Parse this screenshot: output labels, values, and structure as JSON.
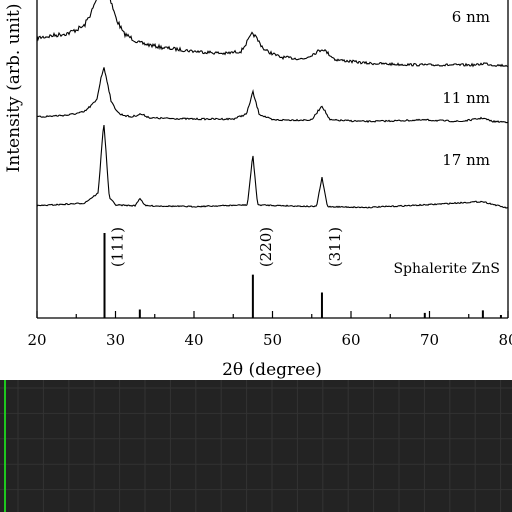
{
  "chart_data": {
    "type": "line",
    "title": "",
    "xlabel": "2θ (degree)",
    "ylabel": "Intensity (arb. unit)",
    "xlim": [
      20,
      80
    ],
    "xticks": [
      20,
      30,
      40,
      50,
      60,
      70,
      80
    ],
    "grid": false,
    "series": [
      {
        "name": "6 nm",
        "points": [
          [
            20,
            0.5
          ],
          [
            24,
            0.58
          ],
          [
            26,
            0.7
          ],
          [
            27,
            0.95
          ],
          [
            27.8,
            1.2
          ],
          [
            28.5,
            1.35
          ],
          [
            29.2,
            1.2
          ],
          [
            30,
            0.85
          ],
          [
            31,
            0.58
          ],
          [
            33,
            0.42
          ],
          [
            36,
            0.34
          ],
          [
            40,
            0.28
          ],
          [
            44,
            0.24
          ],
          [
            46,
            0.28
          ],
          [
            47.5,
            0.58
          ],
          [
            49,
            0.3
          ],
          [
            51,
            0.18
          ],
          [
            54,
            0.15
          ],
          [
            56.4,
            0.32
          ],
          [
            58,
            0.14
          ],
          [
            62,
            0.08
          ],
          [
            66,
            0.06
          ],
          [
            70,
            0.05
          ],
          [
            76,
            0.05
          ],
          [
            77,
            0.08
          ],
          [
            78,
            0.05
          ],
          [
            80,
            0.04
          ]
        ]
      },
      {
        "name": "11 nm",
        "points": [
          [
            20,
            0.12
          ],
          [
            24,
            0.16
          ],
          [
            26,
            0.22
          ],
          [
            27.6,
            0.45
          ],
          [
            28.2,
            0.95
          ],
          [
            28.5,
            1.1
          ],
          [
            28.8,
            0.95
          ],
          [
            29.5,
            0.4
          ],
          [
            30.5,
            0.18
          ],
          [
            32,
            0.12
          ],
          [
            33.2,
            0.18
          ],
          [
            34.5,
            0.1
          ],
          [
            40,
            0.08
          ],
          [
            45,
            0.08
          ],
          [
            46.7,
            0.18
          ],
          [
            47.5,
            0.62
          ],
          [
            48.3,
            0.18
          ],
          [
            50,
            0.06
          ],
          [
            55,
            0.06
          ],
          [
            56.3,
            0.35
          ],
          [
            57.3,
            0.06
          ],
          [
            62,
            0.03
          ],
          [
            69.5,
            0.06
          ],
          [
            74,
            0.03
          ],
          [
            76.8,
            0.1
          ],
          [
            78,
            0.03
          ],
          [
            80,
            0.02
          ]
        ]
      },
      {
        "name": "17 nm",
        "points": [
          [
            20,
            0.05
          ],
          [
            26,
            0.08
          ],
          [
            27.8,
            0.2
          ],
          [
            28.3,
            0.8
          ],
          [
            28.5,
            1.05
          ],
          [
            28.7,
            0.8
          ],
          [
            29.2,
            0.15
          ],
          [
            30,
            0.06
          ],
          [
            32.5,
            0.05
          ],
          [
            33.1,
            0.14
          ],
          [
            33.8,
            0.05
          ],
          [
            40,
            0.04
          ],
          [
            46.8,
            0.06
          ],
          [
            47.5,
            0.65
          ],
          [
            48.1,
            0.06
          ],
          [
            55.6,
            0.04
          ],
          [
            56.3,
            0.38
          ],
          [
            57.0,
            0.04
          ],
          [
            62,
            0.03
          ],
          [
            69.4,
            0.06
          ],
          [
            76.7,
            0.1
          ],
          [
            80,
            0.02
          ]
        ]
      }
    ],
    "reference": {
      "name": "Sphalerite ZnS",
      "lines": [
        {
          "x": 28.6,
          "intensity": 100,
          "label": "(111)"
        },
        {
          "x": 33.1,
          "intensity": 10,
          "label": ""
        },
        {
          "x": 47.5,
          "intensity": 51,
          "label": "(220)"
        },
        {
          "x": 56.3,
          "intensity": 30,
          "label": "(311)"
        },
        {
          "x": 69.4,
          "intensity": 6,
          "label": ""
        },
        {
          "x": 76.8,
          "intensity": 9,
          "label": ""
        },
        {
          "x": 79.1,
          "intensity": 2,
          "label": ""
        }
      ]
    }
  },
  "panel": {
    "background": "#232323",
    "grid_color": "#333333",
    "cursor_color": "#1ec81e"
  }
}
